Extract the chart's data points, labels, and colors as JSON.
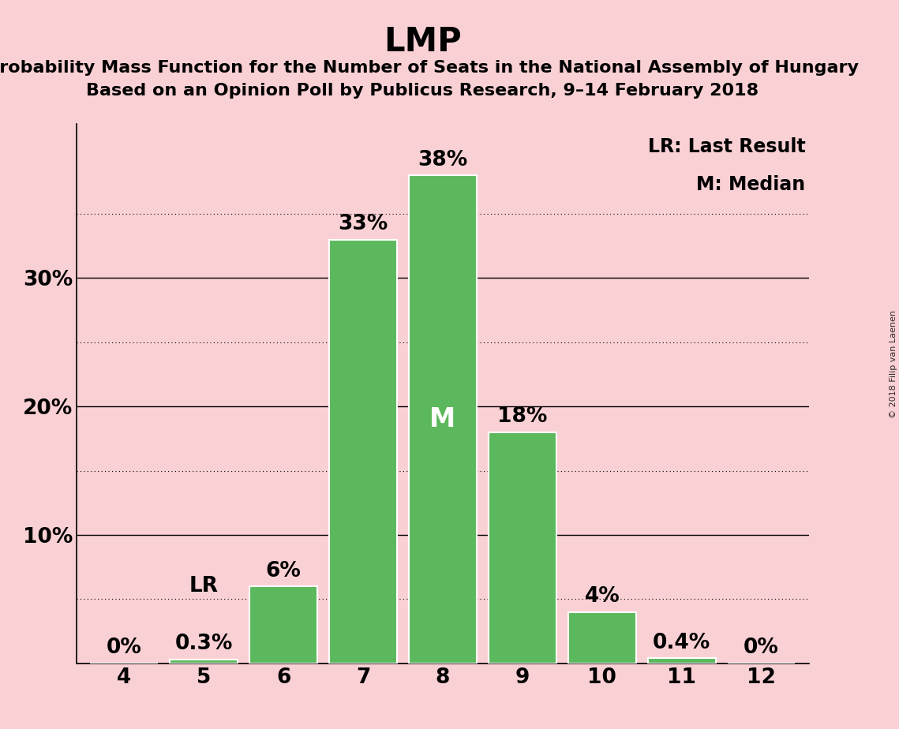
{
  "title": "LMP",
  "subtitle1": "Probability Mass Function for the Number of Seats in the National Assembly of Hungary",
  "subtitle2": "Based on an Opinion Poll by Publicus Research, 9–14 February 2018",
  "watermark": "© 2018 Filip van Laenen",
  "legend_lr": "LR: Last Result",
  "legend_m": "M: Median",
  "categories": [
    4,
    5,
    6,
    7,
    8,
    9,
    10,
    11,
    12
  ],
  "values": [
    0.0,
    0.3,
    6.0,
    33.0,
    38.0,
    18.0,
    4.0,
    0.4,
    0.0
  ],
  "bar_color": "#5cb85c",
  "bar_edge_color": "#ffffff",
  "background_color": "#f9d0d4",
  "label_color_above": "#000000",
  "label_color_inside": "#ffffff",
  "median_seat": 8,
  "lr_seat": 5,
  "ylim": [
    0,
    42
  ],
  "solid_gridlines": [
    0,
    10,
    20,
    30
  ],
  "dotted_gridlines": [
    5,
    15,
    25,
    35
  ],
  "ytick_positions": [
    0,
    10,
    20,
    30
  ],
  "ytick_labels": [
    "",
    "10%",
    "20%",
    "30%"
  ],
  "title_fontsize": 30,
  "subtitle_fontsize": 16,
  "tick_fontsize": 19,
  "bar_label_fontsize": 19,
  "legend_fontsize": 17,
  "m_label_fontsize": 24
}
